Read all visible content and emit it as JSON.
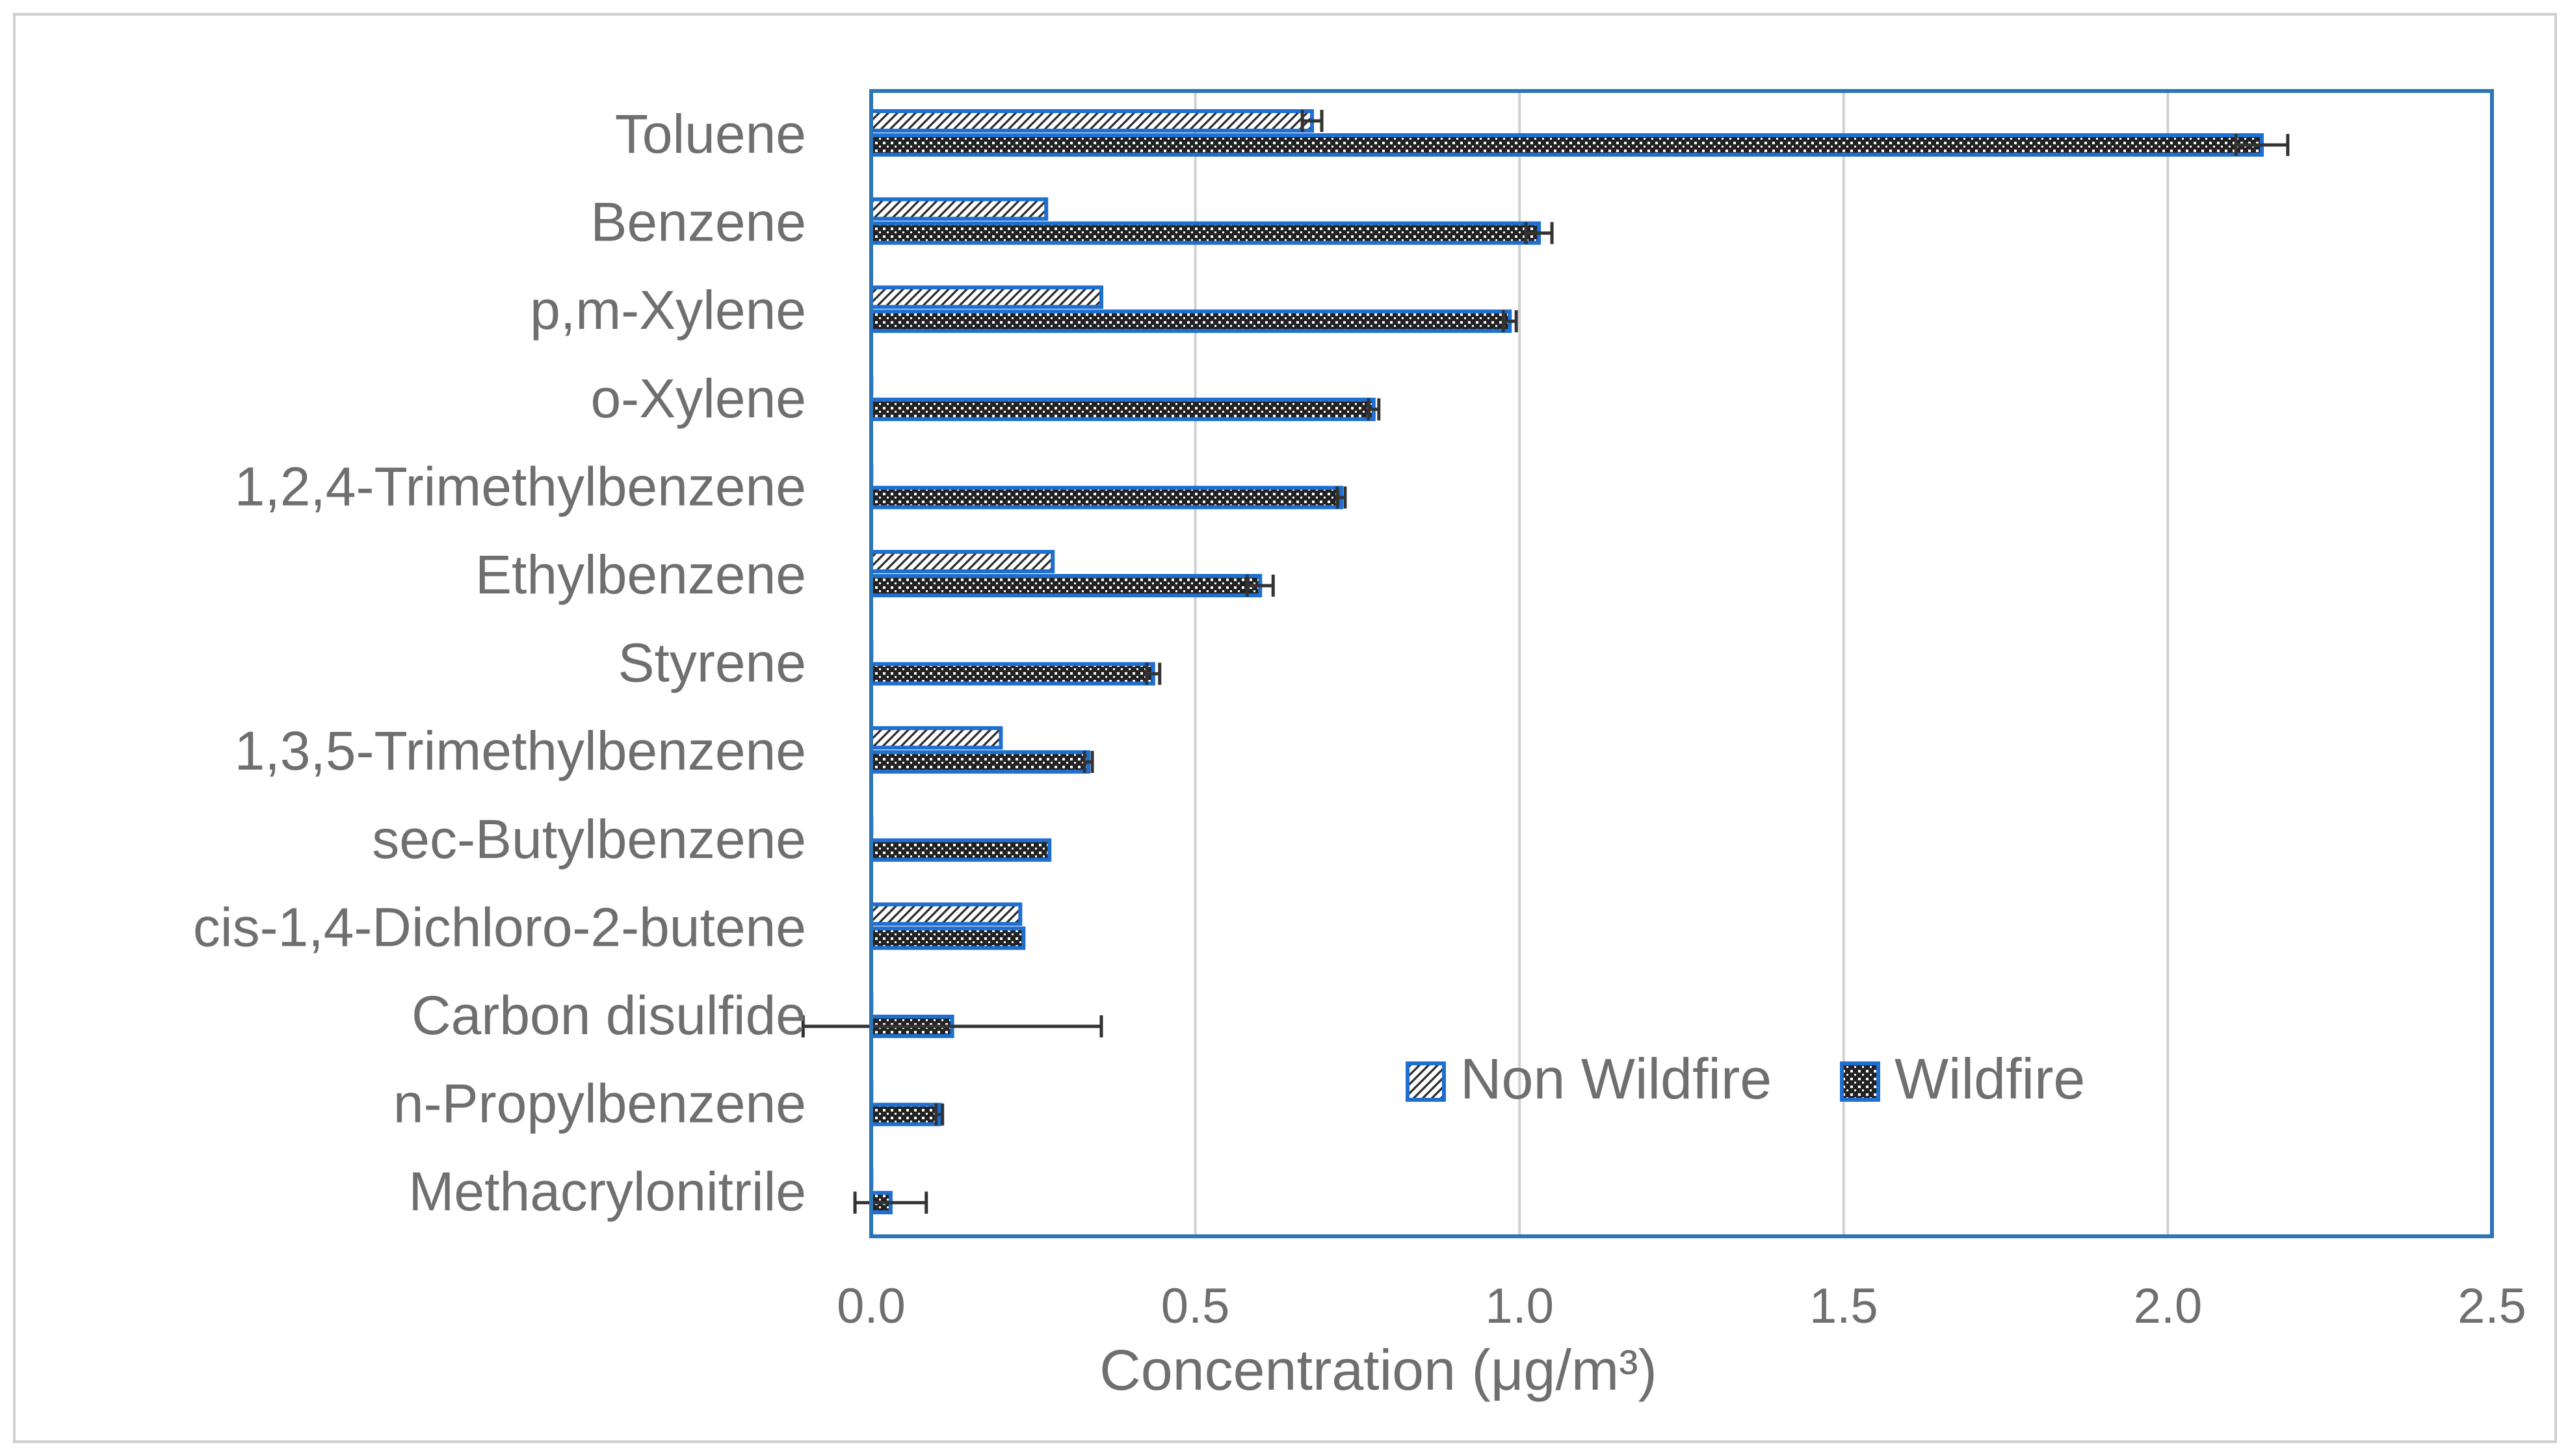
{
  "chart_data": {
    "type": "bar",
    "orientation": "horizontal",
    "title": "",
    "xlabel": "Concentration (μg/m³)",
    "ylabel": "",
    "xlim": [
      0,
      2.5
    ],
    "xticks": [
      "0.0",
      "0.5",
      "1.0",
      "1.5",
      "2.0",
      "2.5"
    ],
    "grid": true,
    "legend_position": "bottom-right inside plot",
    "categories": [
      "Toluene",
      "Benzene",
      "p,m-Xylene",
      "o-Xylene",
      "1,2,4-Trimethylbenzene",
      "Ethylbenzene",
      "Styrene",
      "1,3,5-Trimethylbenzene",
      "sec-Butylbenzene",
      "cis-1,4-Dichloro-2-butene",
      "Carbon disulfide",
      "n-Propylbenzene",
      "Methacrylonitrile"
    ],
    "series": [
      {
        "name": "Non Wildfire",
        "pattern": "diagonal-hatch",
        "values": [
          0.68,
          0.27,
          0.355,
          0.0,
          0.0,
          0.28,
          0.0,
          0.2,
          0.0,
          0.23,
          0.0,
          0.0,
          0.0
        ],
        "errors": [
          0.015,
          0.0,
          0.0,
          0.0,
          0.0,
          0.0,
          0.0,
          0.0,
          0.0,
          0.0,
          0.0,
          0.0,
          0.0
        ]
      },
      {
        "name": "Wildfire",
        "pattern": "checker",
        "values": [
          2.145,
          1.03,
          0.985,
          0.775,
          0.725,
          0.6,
          0.435,
          0.335,
          0.275,
          0.235,
          0.125,
          0.105,
          0.03
        ],
        "errors": [
          0.04,
          0.02,
          0.01,
          0.008,
          0.006,
          0.02,
          0.01,
          0.006,
          0.0,
          0.0,
          0.23,
          0.005,
          0.055
        ]
      }
    ]
  },
  "colors": {
    "plot_border": "#2e75b6",
    "bar_outline": "#1f6fd0",
    "bar_fill_dark": "#222222",
    "gridline": "#d0d0d0",
    "text": "#6f6f6f",
    "frame": "#cfcfcf",
    "error_bar": "#333333"
  }
}
